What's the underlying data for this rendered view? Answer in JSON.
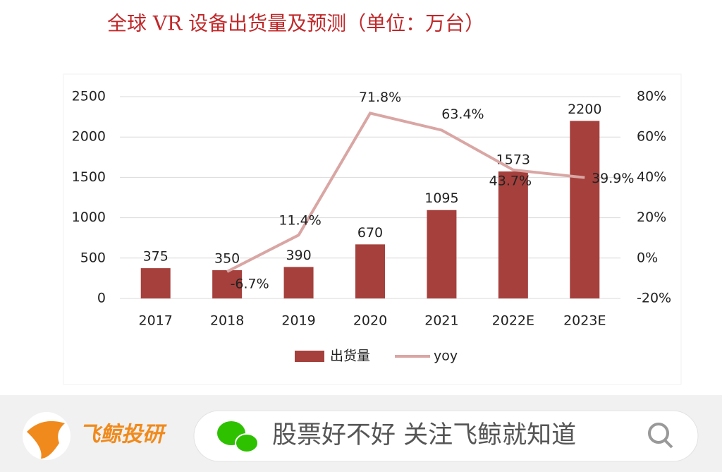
{
  "chart_data": {
    "type": "bar",
    "title": "全球 VR 设备出货量及预测（单位：万台）",
    "categories": [
      "2017",
      "2018",
      "2019",
      "2020",
      "2021",
      "2022E",
      "2023E"
    ],
    "series": [
      {
        "name": "出货量",
        "type": "bar",
        "color": "#a5403c",
        "values": [
          375,
          350,
          390,
          670,
          1095,
          1573,
          2200
        ]
      },
      {
        "name": "yoy",
        "type": "line",
        "axis": "y2",
        "color": "#d9a6a4",
        "values": [
          null,
          -6.7,
          11.4,
          71.8,
          63.4,
          43.7,
          39.9
        ],
        "value_labels": [
          null,
          "-6.7%",
          "11.4%",
          "71.8%",
          "63.4%",
          "43.7%",
          "39.9%"
        ]
      }
    ],
    "ylim": [
      0,
      2500
    ],
    "yticks": [
      0,
      500,
      1000,
      1500,
      2000,
      2500
    ],
    "y2lim": [
      -20,
      80
    ],
    "y2ticks": [
      {
        "value": -20,
        "label": "-20%"
      },
      {
        "value": 0,
        "label": "0%"
      },
      {
        "value": 20,
        "label": "20%"
      },
      {
        "value": 40,
        "label": "40%"
      },
      {
        "value": 60,
        "label": "60%"
      },
      {
        "value": 80,
        "label": "80%"
      }
    ],
    "grid": true,
    "legend": "bottom"
  },
  "footer": {
    "brand": "飞鲸投研",
    "search_text": "股票好不好 关注飞鲸就知道"
  }
}
